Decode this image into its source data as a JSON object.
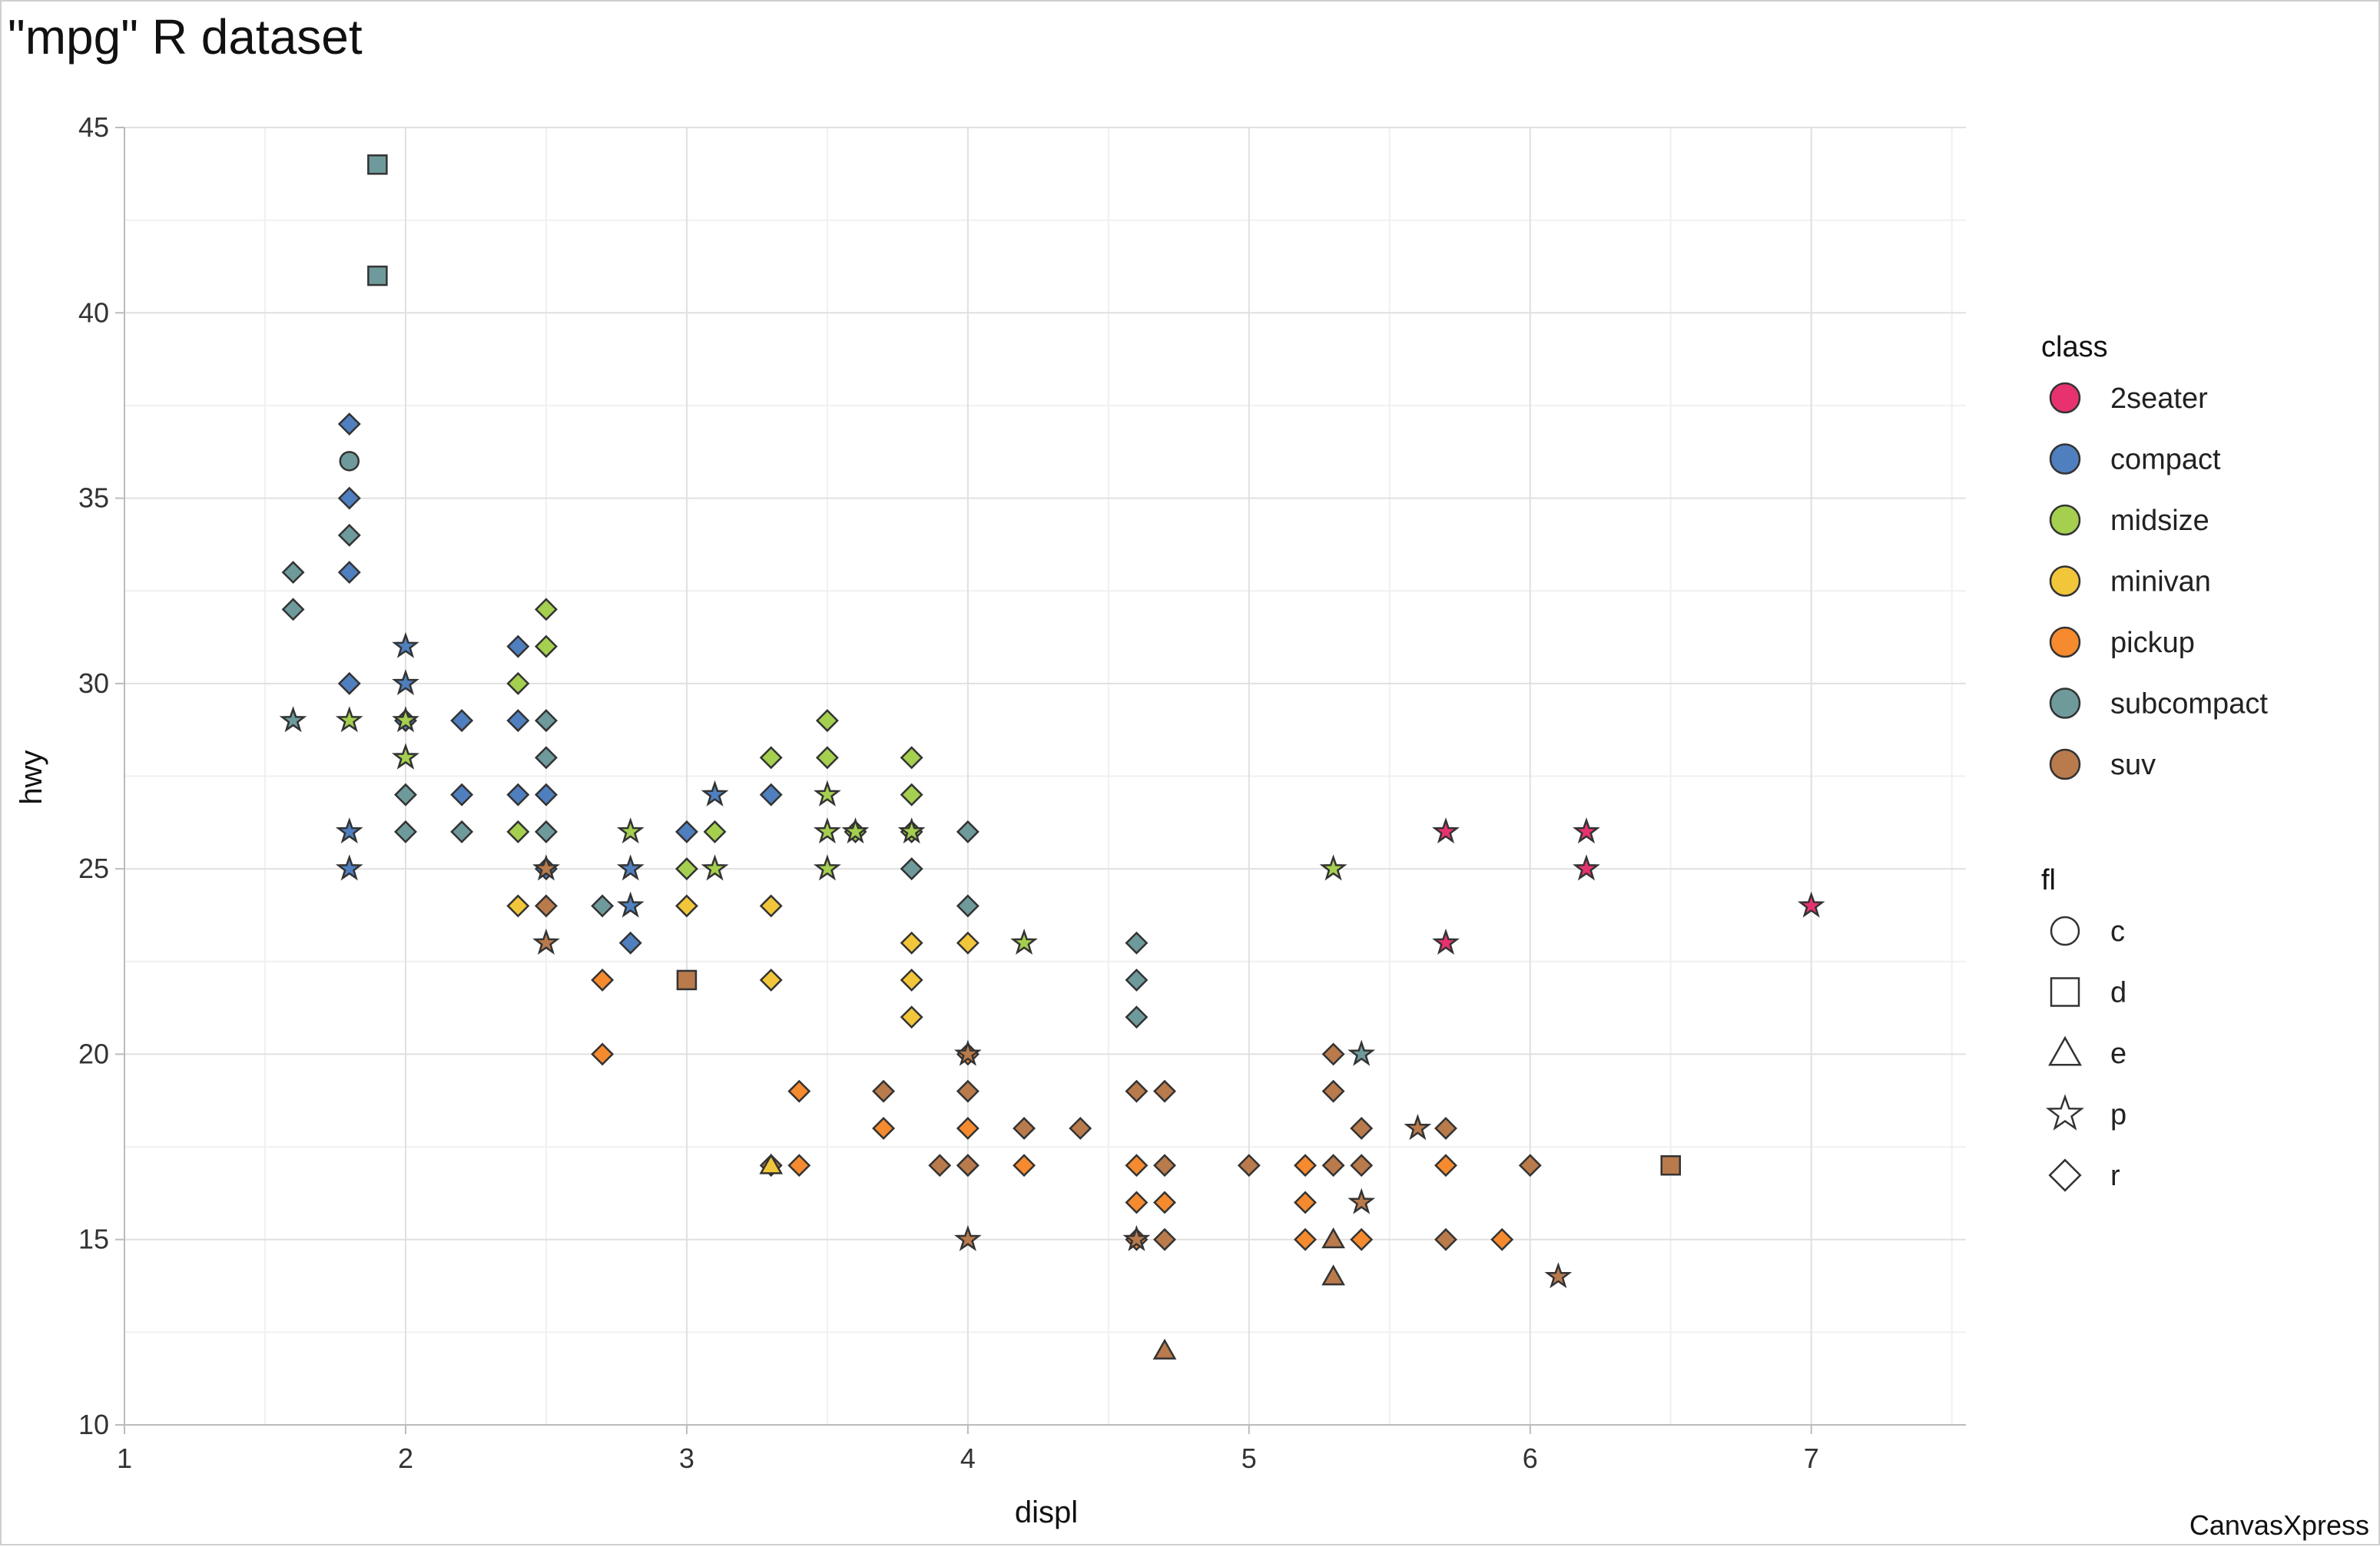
{
  "chart_data": {
    "type": "scatter",
    "title": "\"mpg\" R dataset",
    "xlabel": "displ",
    "ylabel": "hwy",
    "xlim": [
      1,
      7.55
    ],
    "ylim": [
      10,
      45
    ],
    "x_ticks": [
      1,
      2,
      3,
      4,
      5,
      6,
      7
    ],
    "y_ticks": [
      10,
      15,
      20,
      25,
      30,
      35,
      40,
      45
    ],
    "grid": true,
    "legend_placement": "right",
    "color_legend": {
      "title": "class",
      "items": [
        {
          "name": "2seater",
          "color": "#e8326f"
        },
        {
          "name": "compact",
          "color": "#4f7fbe"
        },
        {
          "name": "midsize",
          "color": "#a4cf4f"
        },
        {
          "name": "minivan",
          "color": "#f2c63a"
        },
        {
          "name": "pickup",
          "color": "#f58a2f"
        },
        {
          "name": "subcompact",
          "color": "#6f9a9b"
        },
        {
          "name": "suv",
          "color": "#b97a4c"
        }
      ]
    },
    "shape_legend": {
      "title": "fl",
      "items": [
        {
          "name": "c",
          "shape": "circle"
        },
        {
          "name": "d",
          "shape": "square"
        },
        {
          "name": "e",
          "shape": "triangle"
        },
        {
          "name": "p",
          "shape": "star"
        },
        {
          "name": "r",
          "shape": "diamond"
        }
      ]
    },
    "points": [
      {
        "x": 1.6,
        "y": 33,
        "class": "subcompact",
        "fl": "r"
      },
      {
        "x": 1.6,
        "y": 32,
        "class": "subcompact",
        "fl": "r"
      },
      {
        "x": 1.6,
        "y": 29,
        "class": "subcompact",
        "fl": "p"
      },
      {
        "x": 1.8,
        "y": 37,
        "class": "compact",
        "fl": "r"
      },
      {
        "x": 1.8,
        "y": 36,
        "class": "subcompact",
        "fl": "c"
      },
      {
        "x": 1.8,
        "y": 35,
        "class": "compact",
        "fl": "r"
      },
      {
        "x": 1.8,
        "y": 34,
        "class": "subcompact",
        "fl": "r"
      },
      {
        "x": 1.8,
        "y": 33,
        "class": "compact",
        "fl": "r"
      },
      {
        "x": 1.8,
        "y": 30,
        "class": "compact",
        "fl": "r"
      },
      {
        "x": 1.8,
        "y": 29,
        "class": "midsize",
        "fl": "p"
      },
      {
        "x": 1.8,
        "y": 26,
        "class": "compact",
        "fl": "p"
      },
      {
        "x": 1.8,
        "y": 25,
        "class": "compact",
        "fl": "p"
      },
      {
        "x": 1.9,
        "y": 44,
        "class": "subcompact",
        "fl": "d"
      },
      {
        "x": 1.9,
        "y": 41,
        "class": "subcompact",
        "fl": "d"
      },
      {
        "x": 2.0,
        "y": 31,
        "class": "compact",
        "fl": "p"
      },
      {
        "x": 2.0,
        "y": 30,
        "class": "compact",
        "fl": "p"
      },
      {
        "x": 2.0,
        "y": 29,
        "class": "compact",
        "fl": "r"
      },
      {
        "x": 2.0,
        "y": 29,
        "class": "midsize",
        "fl": "p"
      },
      {
        "x": 2.0,
        "y": 28,
        "class": "compact",
        "fl": "p"
      },
      {
        "x": 2.0,
        "y": 28,
        "class": "midsize",
        "fl": "p"
      },
      {
        "x": 2.0,
        "y": 27,
        "class": "subcompact",
        "fl": "r"
      },
      {
        "x": 2.0,
        "y": 26,
        "class": "subcompact",
        "fl": "r"
      },
      {
        "x": 2.2,
        "y": 29,
        "class": "compact",
        "fl": "r"
      },
      {
        "x": 2.2,
        "y": 27,
        "class": "compact",
        "fl": "r"
      },
      {
        "x": 2.2,
        "y": 26,
        "class": "subcompact",
        "fl": "r"
      },
      {
        "x": 2.4,
        "y": 31,
        "class": "compact",
        "fl": "r"
      },
      {
        "x": 2.4,
        "y": 30,
        "class": "midsize",
        "fl": "r"
      },
      {
        "x": 2.4,
        "y": 29,
        "class": "compact",
        "fl": "r"
      },
      {
        "x": 2.4,
        "y": 27,
        "class": "compact",
        "fl": "r"
      },
      {
        "x": 2.4,
        "y": 26,
        "class": "midsize",
        "fl": "r"
      },
      {
        "x": 2.4,
        "y": 24,
        "class": "minivan",
        "fl": "r"
      },
      {
        "x": 2.5,
        "y": 32,
        "class": "midsize",
        "fl": "r"
      },
      {
        "x": 2.5,
        "y": 31,
        "class": "midsize",
        "fl": "r"
      },
      {
        "x": 2.5,
        "y": 29,
        "class": "subcompact",
        "fl": "r"
      },
      {
        "x": 2.5,
        "y": 28,
        "class": "subcompact",
        "fl": "r"
      },
      {
        "x": 2.5,
        "y": 27,
        "class": "compact",
        "fl": "r"
      },
      {
        "x": 2.5,
        "y": 26,
        "class": "subcompact",
        "fl": "r"
      },
      {
        "x": 2.5,
        "y": 25,
        "class": "compact",
        "fl": "r"
      },
      {
        "x": 2.5,
        "y": 25,
        "class": "suv",
        "fl": "p"
      },
      {
        "x": 2.5,
        "y": 24,
        "class": "suv",
        "fl": "r"
      },
      {
        "x": 2.5,
        "y": 23,
        "class": "suv",
        "fl": "p"
      },
      {
        "x": 2.7,
        "y": 24,
        "class": "subcompact",
        "fl": "r"
      },
      {
        "x": 2.7,
        "y": 22,
        "class": "pickup",
        "fl": "r"
      },
      {
        "x": 2.7,
        "y": 20,
        "class": "pickup",
        "fl": "r"
      },
      {
        "x": 2.8,
        "y": 26,
        "class": "midsize",
        "fl": "p"
      },
      {
        "x": 2.8,
        "y": 25,
        "class": "compact",
        "fl": "p"
      },
      {
        "x": 2.8,
        "y": 24,
        "class": "compact",
        "fl": "p"
      },
      {
        "x": 2.8,
        "y": 23,
        "class": "compact",
        "fl": "r"
      },
      {
        "x": 3.0,
        "y": 26,
        "class": "compact",
        "fl": "r"
      },
      {
        "x": 3.0,
        "y": 25,
        "class": "midsize",
        "fl": "r"
      },
      {
        "x": 3.0,
        "y": 24,
        "class": "minivan",
        "fl": "r"
      },
      {
        "x": 3.0,
        "y": 22,
        "class": "suv",
        "fl": "d"
      },
      {
        "x": 3.1,
        "y": 27,
        "class": "compact",
        "fl": "p"
      },
      {
        "x": 3.1,
        "y": 26,
        "class": "midsize",
        "fl": "r"
      },
      {
        "x": 3.1,
        "y": 25,
        "class": "midsize",
        "fl": "p"
      },
      {
        "x": 3.3,
        "y": 28,
        "class": "midsize",
        "fl": "r"
      },
      {
        "x": 3.3,
        "y": 27,
        "class": "compact",
        "fl": "r"
      },
      {
        "x": 3.3,
        "y": 24,
        "class": "minivan",
        "fl": "r"
      },
      {
        "x": 3.3,
        "y": 22,
        "class": "minivan",
        "fl": "r"
      },
      {
        "x": 3.3,
        "y": 17,
        "class": "suv",
        "fl": "r"
      },
      {
        "x": 3.3,
        "y": 17,
        "class": "minivan",
        "fl": "e"
      },
      {
        "x": 3.4,
        "y": 19,
        "class": "pickup",
        "fl": "r"
      },
      {
        "x": 3.4,
        "y": 17,
        "class": "pickup",
        "fl": "r"
      },
      {
        "x": 3.5,
        "y": 29,
        "class": "midsize",
        "fl": "r"
      },
      {
        "x": 3.5,
        "y": 28,
        "class": "midsize",
        "fl": "r"
      },
      {
        "x": 3.5,
        "y": 27,
        "class": "midsize",
        "fl": "p"
      },
      {
        "x": 3.5,
        "y": 26,
        "class": "midsize",
        "fl": "p"
      },
      {
        "x": 3.5,
        "y": 25,
        "class": "midsize",
        "fl": "p"
      },
      {
        "x": 3.6,
        "y": 26,
        "class": "midsize",
        "fl": "r"
      },
      {
        "x": 3.6,
        "y": 26,
        "class": "midsize",
        "fl": "p"
      },
      {
        "x": 3.7,
        "y": 19,
        "class": "suv",
        "fl": "r"
      },
      {
        "x": 3.7,
        "y": 18,
        "class": "pickup",
        "fl": "r"
      },
      {
        "x": 3.8,
        "y": 28,
        "class": "midsize",
        "fl": "r"
      },
      {
        "x": 3.8,
        "y": 27,
        "class": "midsize",
        "fl": "r"
      },
      {
        "x": 3.8,
        "y": 26,
        "class": "midsize",
        "fl": "r"
      },
      {
        "x": 3.8,
        "y": 26,
        "class": "midsize",
        "fl": "p"
      },
      {
        "x": 3.8,
        "y": 25,
        "class": "subcompact",
        "fl": "r"
      },
      {
        "x": 3.8,
        "y": 23,
        "class": "minivan",
        "fl": "r"
      },
      {
        "x": 3.8,
        "y": 22,
        "class": "minivan",
        "fl": "r"
      },
      {
        "x": 3.8,
        "y": 21,
        "class": "minivan",
        "fl": "r"
      },
      {
        "x": 3.9,
        "y": 17,
        "class": "suv",
        "fl": "r"
      },
      {
        "x": 4.0,
        "y": 26,
        "class": "subcompact",
        "fl": "r"
      },
      {
        "x": 4.0,
        "y": 24,
        "class": "subcompact",
        "fl": "r"
      },
      {
        "x": 4.0,
        "y": 23,
        "class": "minivan",
        "fl": "r"
      },
      {
        "x": 4.0,
        "y": 20,
        "class": "pickup",
        "fl": "r"
      },
      {
        "x": 4.0,
        "y": 20,
        "class": "suv",
        "fl": "p"
      },
      {
        "x": 4.0,
        "y": 19,
        "class": "suv",
        "fl": "r"
      },
      {
        "x": 4.0,
        "y": 18,
        "class": "pickup",
        "fl": "r"
      },
      {
        "x": 4.0,
        "y": 17,
        "class": "pickup",
        "fl": "r"
      },
      {
        "x": 4.0,
        "y": 17,
        "class": "suv",
        "fl": "r"
      },
      {
        "x": 4.0,
        "y": 15,
        "class": "suv",
        "fl": "p"
      },
      {
        "x": 4.2,
        "y": 23,
        "class": "midsize",
        "fl": "p"
      },
      {
        "x": 4.2,
        "y": 18,
        "class": "suv",
        "fl": "r"
      },
      {
        "x": 4.2,
        "y": 17,
        "class": "pickup",
        "fl": "r"
      },
      {
        "x": 4.4,
        "y": 18,
        "class": "suv",
        "fl": "r"
      },
      {
        "x": 4.6,
        "y": 23,
        "class": "subcompact",
        "fl": "r"
      },
      {
        "x": 4.6,
        "y": 22,
        "class": "subcompact",
        "fl": "r"
      },
      {
        "x": 4.6,
        "y": 21,
        "class": "subcompact",
        "fl": "r"
      },
      {
        "x": 4.6,
        "y": 19,
        "class": "suv",
        "fl": "r"
      },
      {
        "x": 4.6,
        "y": 17,
        "class": "pickup",
        "fl": "r"
      },
      {
        "x": 4.6,
        "y": 16,
        "class": "pickup",
        "fl": "r"
      },
      {
        "x": 4.6,
        "y": 15,
        "class": "pickup",
        "fl": "r"
      },
      {
        "x": 4.6,
        "y": 15,
        "class": "suv",
        "fl": "p"
      },
      {
        "x": 4.7,
        "y": 19,
        "class": "suv",
        "fl": "r"
      },
      {
        "x": 4.7,
        "y": 17,
        "class": "suv",
        "fl": "r"
      },
      {
        "x": 4.7,
        "y": 16,
        "class": "pickup",
        "fl": "r"
      },
      {
        "x": 4.7,
        "y": 15,
        "class": "suv",
        "fl": "r"
      },
      {
        "x": 4.7,
        "y": 12,
        "class": "suv",
        "fl": "e"
      },
      {
        "x": 5.0,
        "y": 17,
        "class": "suv",
        "fl": "r"
      },
      {
        "x": 5.2,
        "y": 17,
        "class": "pickup",
        "fl": "r"
      },
      {
        "x": 5.2,
        "y": 16,
        "class": "pickup",
        "fl": "r"
      },
      {
        "x": 5.2,
        "y": 15,
        "class": "pickup",
        "fl": "r"
      },
      {
        "x": 5.3,
        "y": 25,
        "class": "midsize",
        "fl": "p"
      },
      {
        "x": 5.3,
        "y": 20,
        "class": "suv",
        "fl": "r"
      },
      {
        "x": 5.3,
        "y": 19,
        "class": "suv",
        "fl": "r"
      },
      {
        "x": 5.3,
        "y": 17,
        "class": "suv",
        "fl": "r"
      },
      {
        "x": 5.3,
        "y": 15,
        "class": "suv",
        "fl": "e"
      },
      {
        "x": 5.3,
        "y": 14,
        "class": "suv",
        "fl": "e"
      },
      {
        "x": 5.4,
        "y": 20,
        "class": "subcompact",
        "fl": "p"
      },
      {
        "x": 5.4,
        "y": 18,
        "class": "suv",
        "fl": "r"
      },
      {
        "x": 5.4,
        "y": 17,
        "class": "suv",
        "fl": "r"
      },
      {
        "x": 5.4,
        "y": 16,
        "class": "suv",
        "fl": "p"
      },
      {
        "x": 5.4,
        "y": 15,
        "class": "pickup",
        "fl": "r"
      },
      {
        "x": 5.6,
        "y": 18,
        "class": "suv",
        "fl": "p"
      },
      {
        "x": 5.7,
        "y": 26,
        "class": "2seater",
        "fl": "p"
      },
      {
        "x": 5.7,
        "y": 23,
        "class": "2seater",
        "fl": "p"
      },
      {
        "x": 5.7,
        "y": 18,
        "class": "suv",
        "fl": "r"
      },
      {
        "x": 5.7,
        "y": 17,
        "class": "pickup",
        "fl": "r"
      },
      {
        "x": 5.7,
        "y": 15,
        "class": "suv",
        "fl": "r"
      },
      {
        "x": 5.9,
        "y": 15,
        "class": "pickup",
        "fl": "r"
      },
      {
        "x": 6.0,
        "y": 17,
        "class": "suv",
        "fl": "r"
      },
      {
        "x": 6.1,
        "y": 14,
        "class": "suv",
        "fl": "p"
      },
      {
        "x": 6.2,
        "y": 26,
        "class": "2seater",
        "fl": "p"
      },
      {
        "x": 6.2,
        "y": 25,
        "class": "2seater",
        "fl": "p"
      },
      {
        "x": 6.5,
        "y": 17,
        "class": "suv",
        "fl": "d"
      },
      {
        "x": 7.0,
        "y": 24,
        "class": "2seater",
        "fl": "p"
      }
    ]
  },
  "watermark": "CanvasXpress"
}
